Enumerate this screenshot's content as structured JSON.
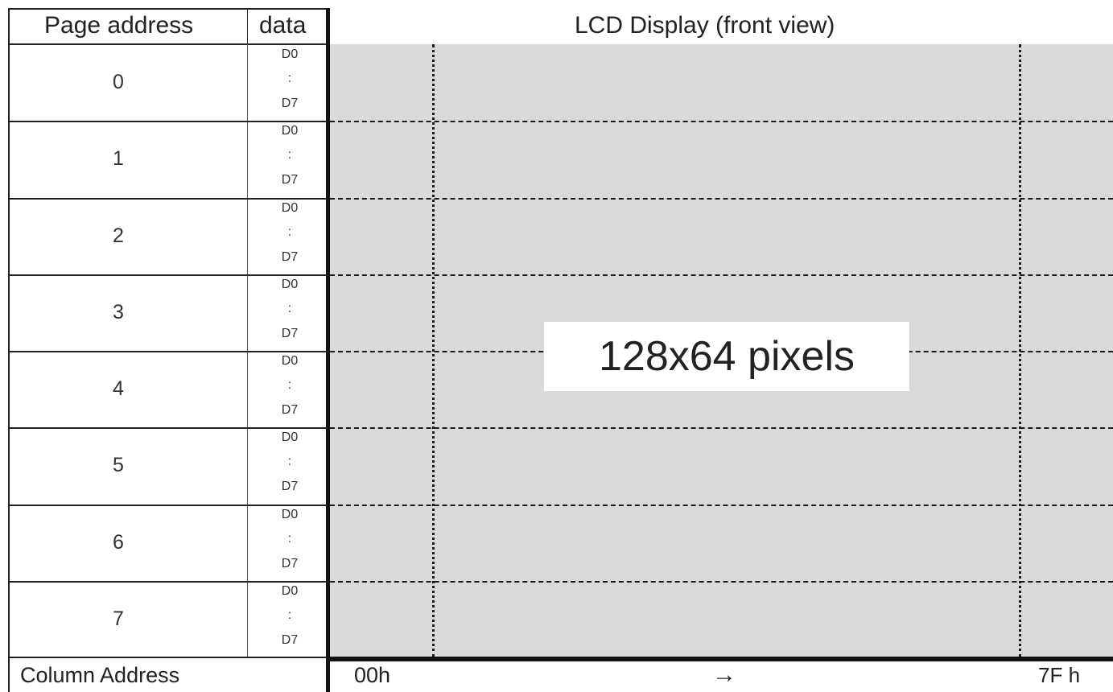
{
  "header": {
    "page_address": "Page address",
    "data": "data",
    "lcd_title": "LCD Display (front view)"
  },
  "pages": [
    {
      "num": "0",
      "bit_top": "D0",
      "bit_mid": ":",
      "bit_bot": "D7"
    },
    {
      "num": "1",
      "bit_top": "D0",
      "bit_mid": ":",
      "bit_bot": "D7"
    },
    {
      "num": "2",
      "bit_top": "D0",
      "bit_mid": ":",
      "bit_bot": "D7"
    },
    {
      "num": "3",
      "bit_top": "D0",
      "bit_mid": ":",
      "bit_bot": "D7"
    },
    {
      "num": "4",
      "bit_top": "D0",
      "bit_mid": ":",
      "bit_bot": "D7"
    },
    {
      "num": "5",
      "bit_top": "D0",
      "bit_mid": ":",
      "bit_bot": "D7"
    },
    {
      "num": "6",
      "bit_top": "D0",
      "bit_mid": ":",
      "bit_bot": "D7"
    },
    {
      "num": "7",
      "bit_top": "D0",
      "bit_mid": ":",
      "bit_bot": "D7"
    }
  ],
  "display": {
    "label": "128x64 pixels",
    "background": "#d9d9d9"
  },
  "footer": {
    "column_address": "Column Address",
    "start": "00h",
    "arrow": "→",
    "end": "7F h"
  }
}
